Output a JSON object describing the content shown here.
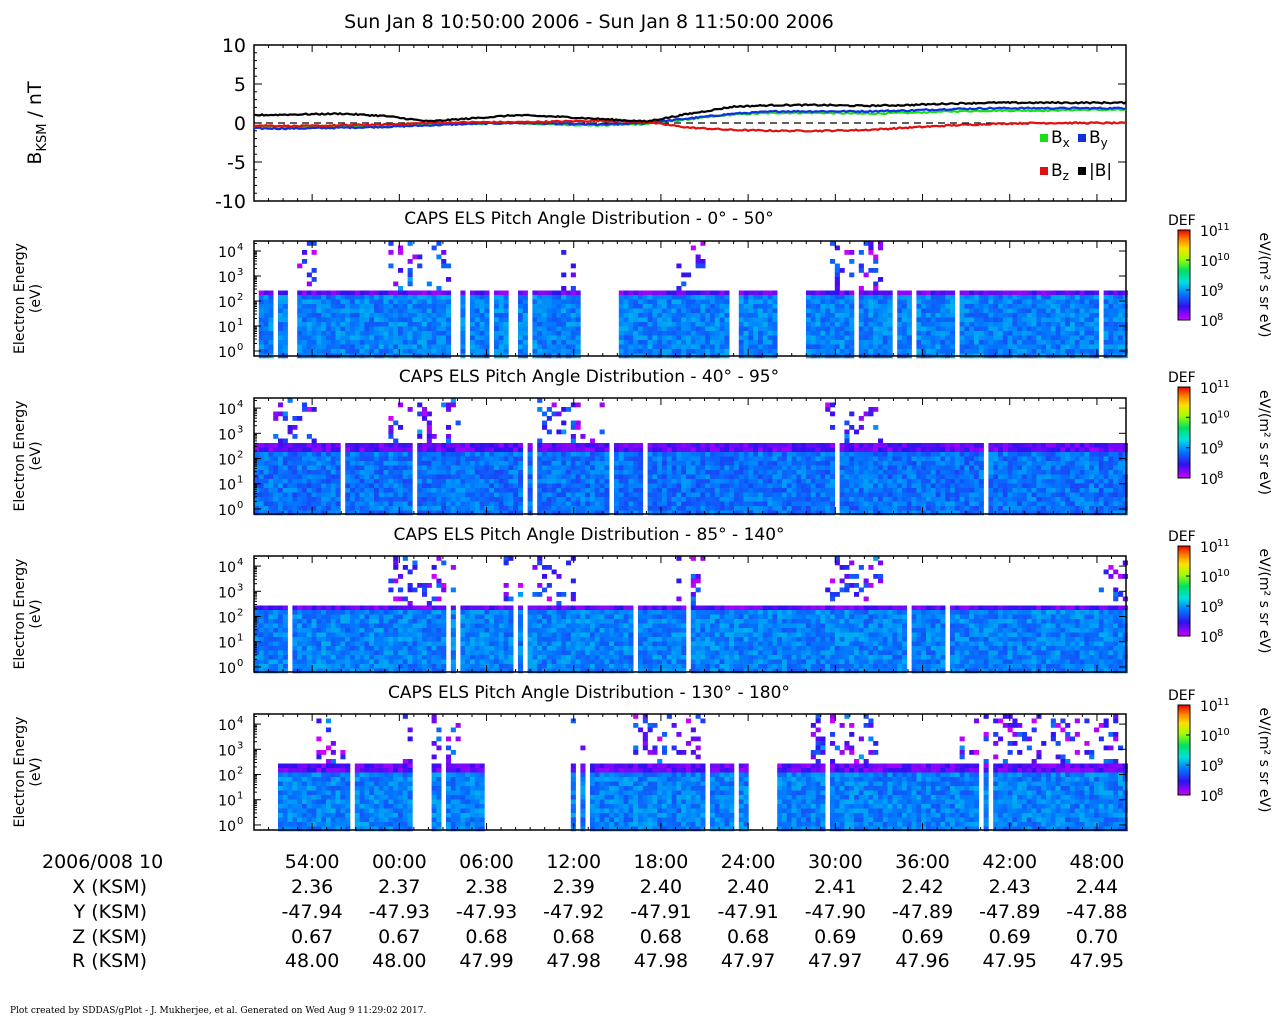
{
  "title": "Sun Jan 8 10:50:00 2006 - Sun Jan 8 11:50:00 2006",
  "footer": "Plot created by SDDAS/gPlot - J. Mukherjee, et al.  Generated on Wed Aug 9 11:29:02 2017.",
  "chart_data": [
    {
      "type": "line",
      "id": "mag",
      "ylabel_main": "B",
      "ylabel_sub": "KSM",
      "ylabel_tail": " / nT",
      "ylim": [
        -10,
        10
      ],
      "yticks": [
        "10",
        "5",
        "0",
        "-5",
        "-10"
      ],
      "ytick_values": [
        10,
        5,
        0,
        -5,
        -10
      ],
      "x_unit": "minutes since 10:50",
      "xlim": [
        0,
        60
      ],
      "zero_line": "dashed",
      "legend": [
        {
          "key": "Bx",
          "base": "B",
          "sub": "x",
          "color": "#18e018"
        },
        {
          "key": "By",
          "base": "B",
          "sub": "y",
          "color": "#1030e0"
        },
        {
          "key": "Bz",
          "base": "B",
          "sub": "z",
          "color": "#e01010"
        },
        {
          "key": "B",
          "base": "|B|",
          "sub": "",
          "color": "#000000"
        }
      ],
      "series": [
        {
          "name": "Bx",
          "color": "#18e018",
          "x": [
            0,
            3,
            6,
            9,
            12,
            15,
            18,
            21,
            24,
            27,
            30,
            33,
            36,
            39,
            42,
            45,
            48,
            51,
            54,
            57,
            60
          ],
          "values": [
            -0.5,
            -0.5,
            -0.5,
            -0.4,
            -0.2,
            -0.1,
            0.0,
            -0.2,
            -0.3,
            -0.1,
            0.5,
            1.1,
            1.3,
            1.3,
            1.2,
            1.3,
            1.5,
            1.6,
            1.6,
            1.7,
            1.7
          ]
        },
        {
          "name": "By",
          "color": "#1030e0",
          "x": [
            0,
            3,
            6,
            9,
            12,
            15,
            18,
            21,
            24,
            27,
            30,
            33,
            36,
            39,
            42,
            45,
            48,
            51,
            54,
            57,
            60
          ],
          "values": [
            -0.7,
            -0.7,
            -0.6,
            -0.5,
            -0.3,
            -0.1,
            0.0,
            -0.1,
            -0.2,
            0.0,
            0.6,
            1.2,
            1.5,
            1.5,
            1.5,
            1.6,
            1.8,
            1.9,
            1.9,
            1.9,
            1.9
          ]
        },
        {
          "name": "Bz",
          "color": "#e01010",
          "x": [
            0,
            3,
            6,
            9,
            12,
            15,
            18,
            21,
            24,
            27,
            30,
            33,
            36,
            39,
            42,
            45,
            48,
            51,
            54,
            57,
            60
          ],
          "values": [
            -0.3,
            -0.4,
            -0.3,
            -0.2,
            0.0,
            0.1,
            0.1,
            0.2,
            0.3,
            0.1,
            -0.6,
            -0.9,
            -1.0,
            -1.0,
            -0.9,
            -0.6,
            -0.3,
            -0.1,
            0.0,
            0.0,
            0.0
          ]
        },
        {
          "name": "|B|",
          "color": "#000000",
          "x": [
            0,
            3,
            6,
            9,
            12,
            15,
            18,
            21,
            24,
            27,
            30,
            33,
            36,
            39,
            42,
            45,
            48,
            51,
            54,
            57,
            60
          ],
          "values": [
            1.0,
            1.1,
            1.2,
            0.9,
            0.2,
            0.6,
            1.0,
            0.8,
            0.5,
            0.2,
            1.2,
            2.1,
            2.3,
            2.3,
            2.2,
            2.3,
            2.5,
            2.6,
            2.6,
            2.6,
            2.6
          ]
        }
      ]
    },
    {
      "type": "heatmap",
      "id": "pad1",
      "title": "CAPS ELS Pitch Angle Distribution - 0° - 50°",
      "ylabel": [
        "Electron Energy",
        "(eV)"
      ],
      "ylim_log10": [
        -0.2,
        4.4
      ],
      "yticks": [
        "10",
        "10",
        "10",
        "10",
        "10"
      ],
      "ytick_exps": [
        "0",
        "1",
        "2",
        "3",
        "4"
      ],
      "x_unit": "minutes since 10:50",
      "colorbar": {
        "label": "DEF",
        "unit": "eV/(m² s sr eV)",
        "tick_exps": [
          "11",
          "10",
          "9",
          "8"
        ]
      },
      "gaps_minutes": [
        [
          0,
          0.3
        ],
        [
          1.2,
          1.6
        ],
        [
          2.2,
          2.7
        ],
        [
          13.3,
          13.9
        ],
        [
          14.3,
          14.7
        ],
        [
          16,
          16.5
        ],
        [
          17.5,
          17.9
        ],
        [
          18.5,
          19
        ],
        [
          22.3,
          25.1
        ],
        [
          32.6,
          33.2
        ],
        [
          35.7,
          37.7
        ]
      ],
      "bands": [
        {
          "top_log10": 2.3,
          "cover_log10": -0.2,
          "level": 0.3
        },
        {
          "top_log10": 1.8,
          "cover_log10": 0.9,
          "level": 0.5
        },
        {
          "top_log10": 0.8,
          "cover_log10": 0.25,
          "level": 0.62
        },
        {
          "top_log10": 0.25,
          "cover_log10": -0.2,
          "level": 0.8
        }
      ],
      "sparse_high_energy": [
        [
          2,
          4
        ],
        [
          9,
          14
        ],
        [
          21,
          22
        ],
        [
          29,
          31
        ],
        [
          39,
          43
        ]
      ]
    },
    {
      "type": "heatmap",
      "id": "pad2",
      "title": "CAPS ELS Pitch Angle Distribution - 40° - 95°",
      "ylabel": [
        "Electron Energy",
        "(eV)"
      ],
      "ylim_log10": [
        -0.2,
        4.4
      ],
      "yticks": [
        "10",
        "10",
        "10",
        "10",
        "10"
      ],
      "ytick_exps": [
        "0",
        "1",
        "2",
        "3",
        "4"
      ],
      "x_unit": "minutes since 10:50",
      "colorbar": {
        "label": "DEF",
        "unit": "eV/(m² s sr eV)",
        "tick_exps": [
          "11",
          "10",
          "9",
          "8"
        ]
      },
      "gaps_minutes": [],
      "bands": [
        {
          "top_log10": 2.4,
          "cover_log10": -0.2,
          "level": 0.28
        },
        {
          "top_log10": 1.9,
          "cover_log10": 1.1,
          "level": 0.46
        },
        {
          "top_log10": 0.9,
          "cover_log10": 0.3,
          "level": 0.6
        },
        {
          "top_log10": 0.3,
          "cover_log10": -0.2,
          "level": 0.8
        }
      ],
      "sparse_high_energy": [
        [
          1,
          4
        ],
        [
          9,
          14
        ],
        [
          19,
          24
        ],
        [
          39,
          43
        ]
      ]
    },
    {
      "type": "heatmap",
      "id": "pad3",
      "title": "CAPS ELS Pitch Angle Distribution - 85° - 140°",
      "ylabel": [
        "Electron Energy",
        "(eV)"
      ],
      "ylim_log10": [
        -0.2,
        4.4
      ],
      "yticks": [
        "10",
        "10",
        "10",
        "10",
        "10"
      ],
      "ytick_exps": [
        "0",
        "1",
        "2",
        "3",
        "4"
      ],
      "x_unit": "minutes since 10:50",
      "colorbar": {
        "label": "DEF",
        "unit": "eV/(m² s sr eV)",
        "tick_exps": [
          "11",
          "10",
          "9",
          "8"
        ]
      },
      "gaps_minutes": [
        [
          17.6,
          18.0
        ],
        [
          18.3,
          18.6
        ]
      ],
      "bands": [
        {
          "top_log10": 2.3,
          "cover_log10": -0.2,
          "level": 0.3
        },
        {
          "top_log10": 1.8,
          "cover_log10": 1.0,
          "level": 0.48
        },
        {
          "top_log10": 0.8,
          "cover_log10": 0.2,
          "level": 0.64
        },
        {
          "top_log10": 0.2,
          "cover_log10": -0.2,
          "level": 0.82
        }
      ],
      "sparse_high_energy": [
        [
          9,
          14
        ],
        [
          17,
          22
        ],
        [
          29,
          31
        ],
        [
          39,
          43
        ],
        [
          58,
          60
        ]
      ]
    },
    {
      "type": "heatmap",
      "id": "pad4",
      "title": "CAPS ELS Pitch Angle Distribution - 130° - 180°",
      "ylabel": [
        "Electron Energy",
        "(eV)"
      ],
      "ylim_log10": [
        -0.2,
        4.4
      ],
      "yticks": [
        "10",
        "10",
        "10",
        "10",
        "10"
      ],
      "ytick_exps": [
        "0",
        "1",
        "2",
        "3",
        "4"
      ],
      "x_unit": "minutes since 10:50",
      "colorbar": {
        "label": "DEF",
        "unit": "eV/(m² s sr eV)",
        "tick_exps": [
          "11",
          "10",
          "9",
          "8"
        ]
      },
      "gaps_minutes": [
        [
          0,
          1.4
        ],
        [
          10.6,
          12.1
        ],
        [
          12.8,
          13.1
        ],
        [
          15.7,
          21.5
        ],
        [
          21.9,
          22.2
        ],
        [
          32.9,
          33.3
        ],
        [
          33.8,
          35.8
        ],
        [
          39.3,
          39.6
        ],
        [
          49.7,
          50.0
        ],
        [
          50.3,
          50.6
        ]
      ],
      "bands": [
        {
          "top_log10": 2.2,
          "cover_log10": -0.2,
          "level": 0.3
        },
        {
          "top_log10": 1.7,
          "cover_log10": 0.9,
          "level": 0.48
        },
        {
          "top_log10": 0.75,
          "cover_log10": 0.2,
          "level": 0.62
        },
        {
          "top_log10": 0.2,
          "cover_log10": -0.2,
          "level": 0.82
        }
      ],
      "sparse_high_energy": [
        [
          4,
          6
        ],
        [
          10,
          14
        ],
        [
          20,
          23
        ],
        [
          26,
          31
        ],
        [
          38,
          43
        ],
        [
          48,
          60
        ]
      ]
    }
  ],
  "x_axis": {
    "ticks_minutes": [
      4,
      10,
      16,
      22,
      28,
      34,
      40,
      46,
      52,
      58
    ],
    "rows": [
      {
        "label": "2006/008 10",
        "values": [
          "54:00",
          "00:00",
          "06:00",
          "12:00",
          "18:00",
          "24:00",
          "30:00",
          "36:00",
          "42:00",
          "48:00"
        ]
      },
      {
        "label": "X (KSM)",
        "values": [
          "2.36",
          "2.37",
          "2.38",
          "2.39",
          "2.40",
          "2.40",
          "2.41",
          "2.42",
          "2.43",
          "2.44"
        ]
      },
      {
        "label": "Y (KSM)",
        "values": [
          "-47.94",
          "-47.93",
          "-47.93",
          "-47.92",
          "-47.91",
          "-47.91",
          "-47.90",
          "-47.89",
          "-47.89",
          "-47.88"
        ]
      },
      {
        "label": "Z (KSM)",
        "values": [
          "0.67",
          "0.67",
          "0.68",
          "0.68",
          "0.68",
          "0.68",
          "0.69",
          "0.69",
          "0.69",
          "0.70"
        ]
      },
      {
        "label": "R (KSM)",
        "values": [
          "48.00",
          "48.00",
          "47.99",
          "47.98",
          "47.98",
          "47.97",
          "47.97",
          "47.96",
          "47.95",
          "47.95"
        ]
      }
    ]
  }
}
